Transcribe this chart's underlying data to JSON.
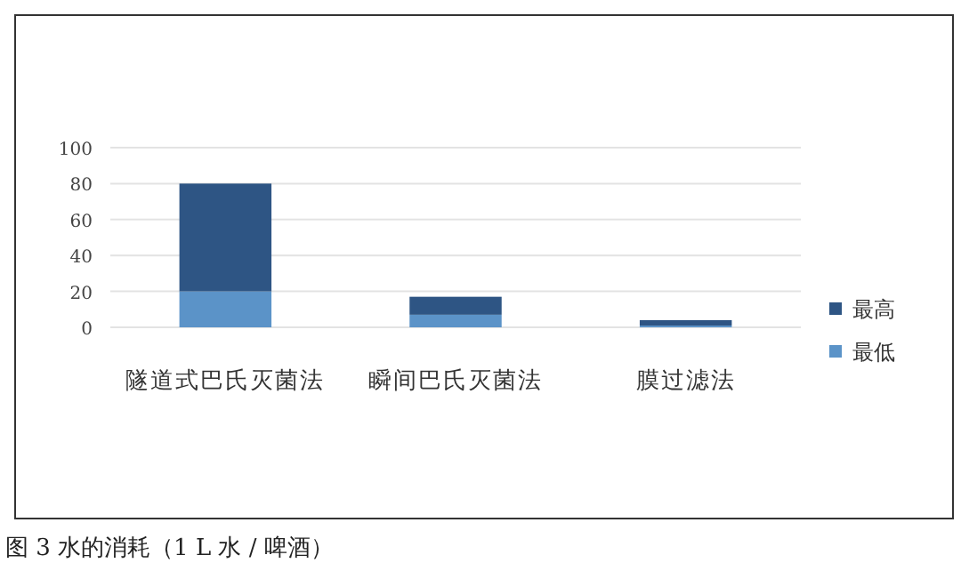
{
  "chart_data": {
    "type": "bar",
    "stacked": true,
    "categories": [
      "隧道式巴氏灭菌法",
      "瞬间巴氏灭菌法",
      "膜过滤法"
    ],
    "series": [
      {
        "name": "最低",
        "color": "#5b93c8",
        "values": [
          20,
          7,
          1
        ]
      },
      {
        "name": "最高",
        "color": "#2e5584",
        "values": [
          60,
          10,
          3
        ]
      }
    ],
    "ylim": [
      0,
      100
    ],
    "yticks": [
      0,
      20,
      40,
      60,
      80,
      100
    ],
    "grid": "y",
    "legend": "right",
    "annotations": [
      "图 3 水的消耗（1 L 水 / 啤酒）"
    ]
  }
}
